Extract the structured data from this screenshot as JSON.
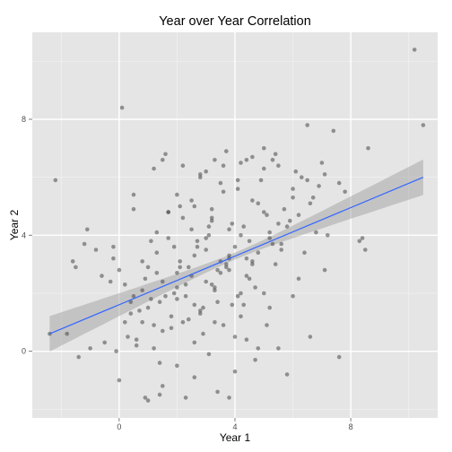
{
  "chart_data": {
    "type": "scatter",
    "title": "Year over Year Correlation",
    "xlabel": "Year 1",
    "ylabel": "Year 2",
    "xlim": [
      -3.0,
      11.0
    ],
    "ylim": [
      -2.3,
      11.0
    ],
    "x_ticks": [
      0,
      4,
      8
    ],
    "y_ticks": [
      0,
      4,
      8
    ],
    "grid": true,
    "panel_background": "#e5e5e5",
    "grid_color": "#ffffff",
    "point_color": "#474747",
    "point_opacity": 0.55,
    "trend_line": {
      "method": "linear",
      "x": [
        -2.4,
        10.5
      ],
      "y": [
        0.6,
        6.0
      ],
      "color": "#3366ff",
      "band_color": "#999999",
      "band_half_width_at_ends": 0.6,
      "band_half_width_at_center": 0.12
    },
    "points": {
      "x": [
        -2.4,
        -2.2,
        -1.8,
        -1.6,
        -1.5,
        -1.4,
        -1.2,
        -1.1,
        -1.0,
        -0.8,
        -0.6,
        -0.5,
        -0.3,
        -0.2,
        -0.2,
        -0.1,
        0.0,
        0.1,
        0.0,
        0.2,
        0.3,
        0.4,
        0.5,
        0.5,
        0.6,
        0.8,
        0.9,
        1.0,
        1.1,
        1.2,
        1.3,
        1.4,
        1.5,
        1.7,
        1.8,
        2.0,
        2.1,
        2.3,
        2.5,
        2.6,
        2.8,
        3.0,
        3.2,
        3.3,
        3.5,
        3.6,
        3.8,
        4.0,
        4.1,
        4.2,
        4.4,
        4.6,
        4.8,
        5.0,
        5.2,
        5.4,
        5.6,
        5.8,
        6.0,
        6.2,
        6.5,
        6.6,
        6.8,
        7.1,
        7.4,
        7.6,
        8.6,
        8.3,
        8.5,
        10.2,
        10.5,
        0.5,
        0.8,
        1.2,
        1.5,
        1.7,
        2.0,
        2.2,
        2.4,
        2.6,
        2.8,
        3.0,
        3.1,
        3.3,
        3.5,
        3.7,
        3.9,
        4.2,
        4.4,
        4.6,
        4.8,
        5.0,
        5.5,
        6.0,
        6.3,
        0.7,
        1.0,
        1.3,
        1.6,
        1.9,
        2.1,
        2.3,
        2.7,
        2.9,
        3.2,
        3.4,
        3.6,
        3.8,
        4.1,
        4.3,
        4.5,
        4.9,
        5.3,
        5.7,
        6.1,
        6.4,
        6.9,
        7.2,
        1.4,
        1.8,
        2.0,
        2.4,
        2.6,
        2.9,
        3.1,
        3.4,
        3.7,
        4.0,
        4.2,
        4.7,
        5.1,
        5.4,
        5.9,
        6.7,
        7.0,
        7.8,
        0.2,
        0.6,
        1.1,
        1.5,
        1.9,
        2.2,
        2.5,
        2.8,
        3.0,
        3.3,
        3.6,
        3.9,
        4.3,
        4.6,
        5.0,
        5.2,
        5.6,
        0.9,
        1.3,
        1.7,
        2.1,
        2.5,
        2.7,
        3.0,
        3.2,
        3.5,
        3.8,
        4.1,
        4.5,
        4.8,
        5.3,
        5.8,
        6.2,
        6.6,
        1.0,
        1.5,
        2.0,
        2.3,
        2.6,
        3.1,
        3.4,
        3.8,
        4.0,
        4.4,
        4.7,
        5.1,
        5.5,
        6.0,
        1.2,
        1.6,
        2.2,
        2.8,
        3.3,
        3.7,
        4.2,
        4.6,
        5.0,
        5.5,
        0.4,
        0.8,
        1.4,
        2.0,
        2.6,
        3.2,
        3.8,
        4.4,
        5.2,
        6.5,
        7.1,
        7.6,
        8.4
      ],
      "y": [
        0.6,
        5.9,
        0.6,
        3.1,
        2.9,
        -0.2,
        3.7,
        4.2,
        0.1,
        3.5,
        2.6,
        0.3,
        2.4,
        3.2,
        3.6,
        0.0,
        -1.0,
        8.4,
        2.8,
        2.3,
        0.5,
        1.7,
        5.4,
        1.9,
        0.4,
        2.1,
        -1.6,
        1.5,
        3.8,
        0.1,
        2.7,
        -1.5,
        6.6,
        4.8,
        1.2,
        5.4,
        3.1,
        1.9,
        4.2,
        0.3,
        6.1,
        2.4,
        4.5,
        1.0,
        2.7,
        6.4,
        3.3,
        0.5,
        5.6,
        2.0,
        6.6,
        3.0,
        0.1,
        4.8,
        1.5,
        6.8,
        3.7,
        -0.8,
        5.3,
        2.5,
        7.8,
        0.5,
        4.1,
        2.8,
        7.6,
        -0.2,
        7.0,
        3.8,
        3.5,
        10.4,
        7.8,
        4.9,
        3.1,
        0.9,
        2.4,
        3.9,
        1.8,
        4.6,
        2.9,
        5.0,
        1.3,
        3.5,
        4.3,
        2.2,
        5.8,
        3.0,
        1.6,
        4.0,
        2.6,
        5.2,
        3.4,
        6.3,
        4.4,
        5.6,
        6.0,
        1.4,
        2.9,
        4.1,
        1.9,
        3.6,
        5.0,
        2.3,
        3.8,
        1.5,
        4.6,
        2.8,
        5.5,
        3.2,
        1.9,
        4.3,
        2.5,
        5.9,
        3.7,
        4.9,
        6.2,
        3.4,
        5.7,
        4.0,
        -0.4,
        0.8,
        2.7,
        1.1,
        3.3,
        0.6,
        4.0,
        1.7,
        2.9,
        3.6,
        1.2,
        2.2,
        4.7,
        3.0,
        4.5,
        5.3,
        6.5,
        5.5,
        1.0,
        0.2,
        1.8,
        0.7,
        2.0,
        1.0,
        2.6,
        1.4,
        3.9,
        2.1,
        0.9,
        4.4,
        1.6,
        3.1,
        2.0,
        4.1,
        3.5,
        2.5,
        3.4,
        4.8,
        2.9,
        5.2,
        3.6,
        6.2,
        4.9,
        3.1,
        4.2,
        5.9,
        3.8,
        5.1,
        6.6,
        4.3,
        4.7,
        5.1,
        -1.7,
        -1.2,
        -0.5,
        -1.6,
        -0.9,
        -0.1,
        -1.4,
        -1.6,
        -0.7,
        0.4,
        -0.3,
        0.9,
        0.1,
        1.9,
        6.3,
        6.8,
        6.4,
        6.0,
        6.6,
        6.9,
        6.5,
        6.7,
        7.0,
        6.4,
        1.3,
        1.0,
        1.7,
        2.2,
        1.6,
        2.3,
        2.8,
        3.2,
        3.9,
        5.9,
        6.1,
        5.8,
        3.9
      ]
    }
  }
}
